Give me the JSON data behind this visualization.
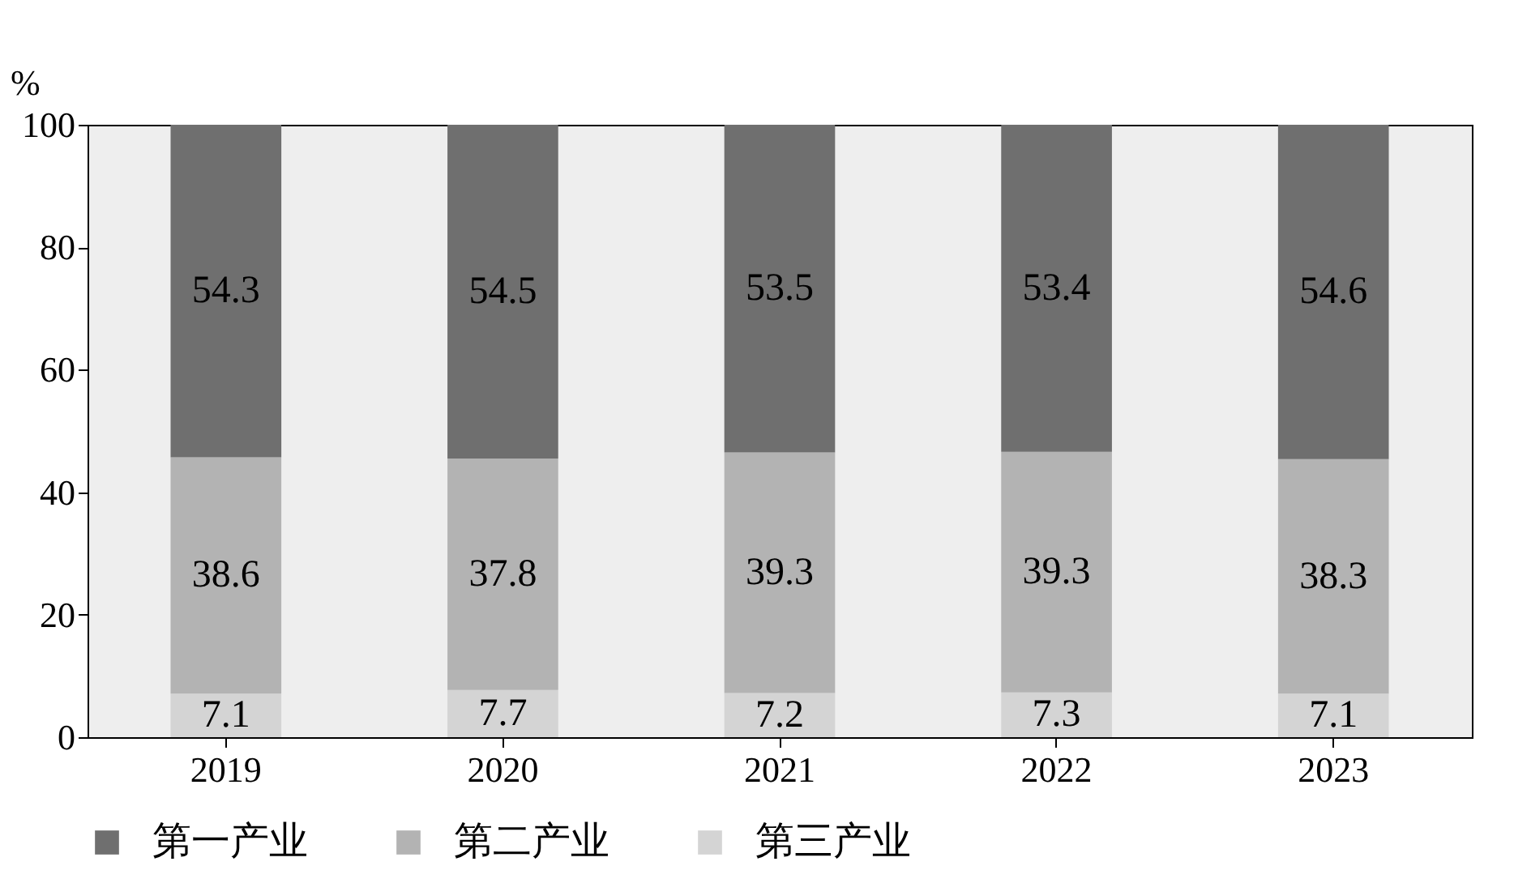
{
  "chart_data": {
    "type": "bar",
    "stacked": true,
    "ylabel": "%",
    "categories": [
      "2019",
      "2020",
      "2021",
      "2022",
      "2023"
    ],
    "series": [
      {
        "name": "第三产业",
        "color": "#d4d4d4",
        "values": [
          7.1,
          7.7,
          7.2,
          7.3,
          7.1
        ]
      },
      {
        "name": "第二产业",
        "color": "#b3b3b3",
        "values": [
          38.6,
          37.8,
          39.3,
          39.3,
          38.3
        ]
      },
      {
        "name": "第一产业",
        "color": "#6f6f6f",
        "values": [
          54.3,
          54.5,
          53.5,
          53.4,
          54.6
        ]
      }
    ],
    "ylim": [
      0,
      100
    ],
    "yticks": [
      0,
      20,
      40,
      60,
      80,
      100
    ],
    "grid": false,
    "legend": "bottom",
    "data_labels": true
  }
}
